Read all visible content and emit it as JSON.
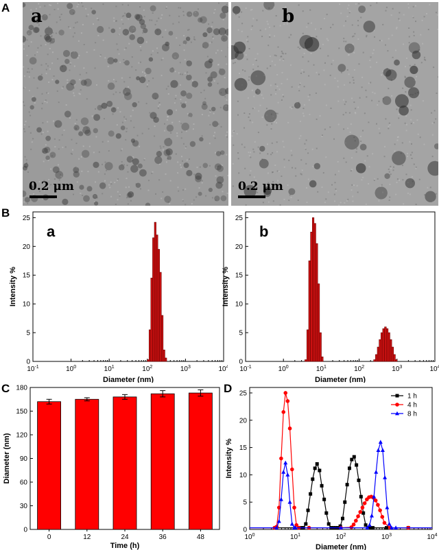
{
  "panels": {
    "A": "A",
    "B": "B",
    "C": "C",
    "D": "D"
  },
  "tem": [
    {
      "sub": "a",
      "scale": "0.2 μm",
      "bg": "#9b9b9b",
      "dot": "#3e3e3e"
    },
    {
      "sub": "b",
      "scale": "0.2 μm",
      "bg": "#a4a4a4",
      "dot": "#2a2a2a"
    }
  ],
  "colors": {
    "bar_red": "#cc1111",
    "bar_dark": "#660000",
    "c_red": "#ff0000",
    "s1": "#000000",
    "s2": "#ff0000",
    "s3": "#0000ff"
  },
  "chart_data": [
    {
      "id": "B-a",
      "type": "bar",
      "sub_label": "a",
      "xlabel": "Diameter (nm)",
      "ylabel": "Intensity %",
      "x_scale": "log",
      "xlim": [
        0.1,
        10000
      ],
      "ylim": [
        0,
        26
      ],
      "x_ticks": [
        "10-1",
        "100",
        "101",
        "102",
        "103",
        "104"
      ],
      "y_ticks": [
        0,
        5,
        10,
        15,
        20,
        25
      ],
      "x": [
        105,
        117,
        130,
        145,
        161,
        179,
        199,
        221,
        246,
        274,
        305
      ],
      "values": [
        0.3,
        5.5,
        14.5,
        21.5,
        24.2,
        22.0,
        19.5,
        15.5,
        8.0,
        2.0,
        0.6
      ]
    },
    {
      "id": "B-b",
      "type": "bar",
      "sub_label": "b",
      "xlabel": "Diameter (nm)",
      "ylabel": "Intensity %",
      "x_scale": "log",
      "xlim": [
        0.1,
        10000
      ],
      "ylim": [
        0,
        26
      ],
      "x_ticks": [
        "10-1",
        "100",
        "101",
        "102",
        "103",
        "104"
      ],
      "y_ticks": [
        0,
        5,
        10,
        15,
        20,
        25
      ],
      "x": [
        3.9,
        4.4,
        4.9,
        5.5,
        6.1,
        6.8,
        7.6,
        8.5,
        9.5,
        10.6,
        255,
        285,
        318,
        355,
        396,
        442,
        494,
        551,
        615,
        687,
        767,
        856,
        955
      ],
      "values": [
        0.3,
        5.5,
        17.5,
        22.5,
        25.0,
        24.0,
        20.5,
        13.5,
        5.0,
        0.8,
        0.3,
        1.2,
        2.5,
        3.8,
        5.0,
        5.7,
        6.0,
        5.7,
        5.0,
        3.8,
        2.5,
        1.2,
        0.3
      ]
    },
    {
      "id": "C",
      "type": "bar",
      "xlabel": "Time (h)",
      "ylabel": "Diameter (nm)",
      "categories": [
        "0",
        "12",
        "24",
        "36",
        "48"
      ],
      "values": [
        162,
        165,
        168,
        172,
        173
      ],
      "errors": [
        3,
        2,
        3,
        4,
        4
      ],
      "ylim": [
        0,
        180
      ],
      "y_ticks": [
        0,
        30,
        60,
        90,
        120,
        150,
        180
      ]
    },
    {
      "id": "D",
      "type": "line",
      "xlabel": "Diameter (nm)",
      "ylabel": "Intensity %",
      "x_scale": "log",
      "xlim": [
        1,
        10000
      ],
      "ylim": [
        0,
        26
      ],
      "x_ticks": [
        "100",
        "101",
        "102",
        "103",
        "104"
      ],
      "y_ticks": [
        0,
        5,
        10,
        15,
        20,
        25
      ],
      "legend_position": "top-right",
      "series": [
        {
          "name": "1 h",
          "color": "#000000",
          "marker": "square",
          "x": [
            1,
            13.5,
            15,
            17,
            19,
            21.5,
            24,
            27,
            30,
            34,
            38,
            43,
            48,
            54,
            61,
            68,
            77,
            86,
            97,
            109,
            122,
            137,
            154,
            173,
            195,
            219,
            246,
            276,
            310,
            349,
            392,
            440,
            500,
            1000,
            3000,
            10000
          ],
          "values": [
            0.3,
            0.3,
            0.3,
            1.0,
            3.5,
            6.5,
            9.2,
            11.2,
            12.0,
            10.8,
            8.0,
            5.5,
            3.0,
            1.0,
            0.3,
            0.3,
            0.3,
            0.3,
            0.6,
            2.0,
            5.0,
            8.2,
            11.2,
            12.8,
            13.3,
            11.8,
            9.0,
            6.0,
            3.0,
            0.8,
            0.3,
            0.3,
            0.3,
            0.3,
            0.3,
            0.3
          ]
        },
        {
          "name": "4 h",
          "color": "#ff0000",
          "marker": "circle",
          "x": [
            1,
            3.5,
            3.9,
            4.4,
            4.9,
            5.5,
            6.1,
            6.8,
            7.6,
            8.5,
            9.5,
            10.6,
            12,
            20,
            100,
            170,
            190,
            213,
            238,
            266,
            297,
            332,
            371,
            414,
            463,
            517,
            578,
            646,
            722,
            806,
            900,
            1200,
            3000,
            10000
          ],
          "values": [
            0.3,
            0.3,
            0.5,
            4.0,
            13.0,
            21.5,
            25.0,
            23.5,
            18.5,
            11.0,
            4.0,
            0.8,
            0.3,
            0.3,
            0.3,
            0.4,
            0.9,
            1.6,
            2.4,
            3.2,
            4.0,
            4.8,
            5.5,
            5.9,
            6.0,
            5.8,
            5.3,
            4.5,
            3.5,
            2.3,
            1.2,
            0.3,
            0.3,
            0.3
          ]
        },
        {
          "name": "8 h",
          "color": "#0000ff",
          "marker": "triangle",
          "x": [
            1,
            3.9,
            4.4,
            4.9,
            5.5,
            6.1,
            6.8,
            7.6,
            8.5,
            9.5,
            10,
            100,
            380,
            425,
            475,
            530,
            590,
            660,
            740,
            825,
            920,
            1030,
            1150,
            1290,
            1600,
            10000
          ],
          "values": [
            0.3,
            0.3,
            1.5,
            5.5,
            10.5,
            12.2,
            10.0,
            5.0,
            1.0,
            0.3,
            0.3,
            0.3,
            0.3,
            0.8,
            2.5,
            6.0,
            10.5,
            14.5,
            16.0,
            14.5,
            9.5,
            4.0,
            1.0,
            0.3,
            0.3,
            0.3
          ]
        }
      ]
    }
  ]
}
